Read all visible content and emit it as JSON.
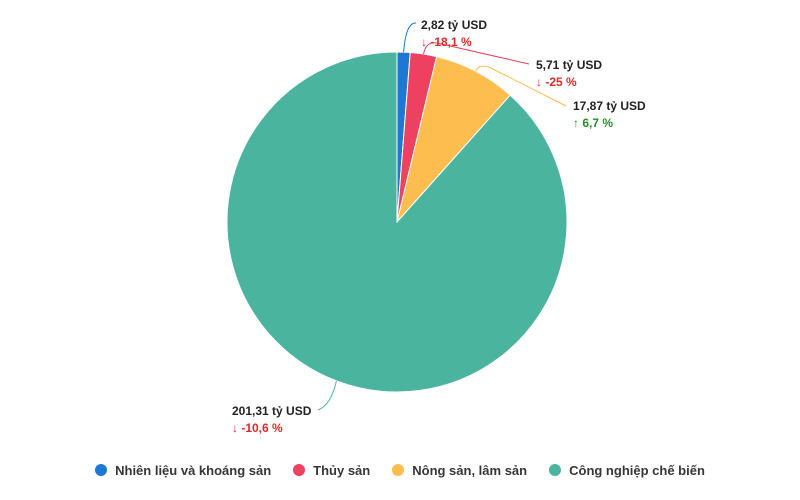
{
  "chart_data": {
    "type": "pie",
    "categories": [
      "Nhiên liệu và khoáng sản",
      "Thủy sản",
      "Nông sản, lâm sản",
      "Công nghiệp chế biến"
    ],
    "values": [
      2.82,
      5.71,
      17.87,
      201.31
    ],
    "value_labels": [
      "2,82 tỷ USD",
      "5,71 tỷ USD",
      "17,87 tỷ USD",
      "201,31 tỷ USD"
    ],
    "change_labels": [
      "↓ -18,1 %",
      "↓ -25 %",
      "↑ 6,7 %",
      "↓ -10,6 %"
    ],
    "colors": [
      "#1f77d4",
      "#ee4060",
      "#fdbd4f",
      "#4ab49e"
    ],
    "change_colors": [
      "#e32828",
      "#e32828",
      "#2a8d2a",
      "#e32828"
    ],
    "label_color": "#222222",
    "legend": "bottom"
  }
}
